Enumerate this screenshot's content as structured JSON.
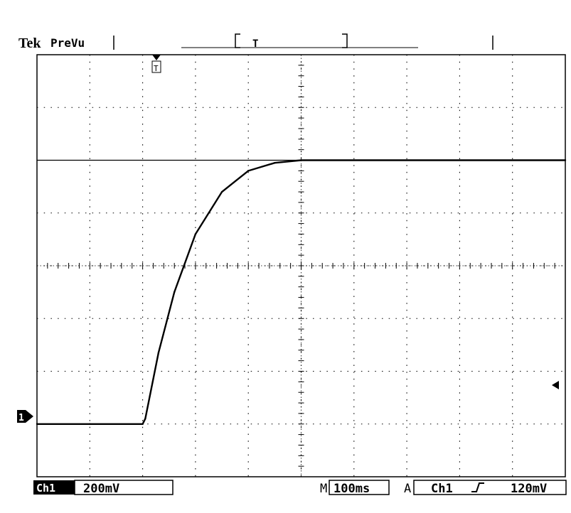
{
  "header": {
    "brand": "Tek",
    "mode": "PreVu"
  },
  "channel_marker": {
    "label": "1"
  },
  "status_bar": {
    "channel": "Ch1",
    "volts_per_div": "200mV",
    "time_prefix": "M",
    "time_per_div": "100ms",
    "trigger_prefix": "A",
    "trigger_source": "Ch1",
    "trigger_slope_icon": "rising-edge-icon",
    "trigger_level": "120mV"
  },
  "colors": {
    "trace": "#000000",
    "grid": "#000000",
    "background": "#ffffff"
  },
  "chart_data": {
    "type": "line",
    "title": "",
    "xlabel": "",
    "ylabel": "",
    "x_units": "ms",
    "y_units": "mV",
    "grid": true,
    "xlim": [
      0,
      1000
    ],
    "ylim": [
      -200,
      1400
    ],
    "series": [
      {
        "x": [
          0,
          100,
          200,
          205,
          230,
          260,
          300,
          350,
          400,
          450,
          500,
          1000
        ],
        "values": [
          0,
          0,
          0,
          20,
          270,
          500,
          720,
          880,
          960,
          990,
          1000,
          1000
        ]
      }
    ],
    "reference_line": {
      "y": 1000,
      "style": "solid"
    }
  }
}
